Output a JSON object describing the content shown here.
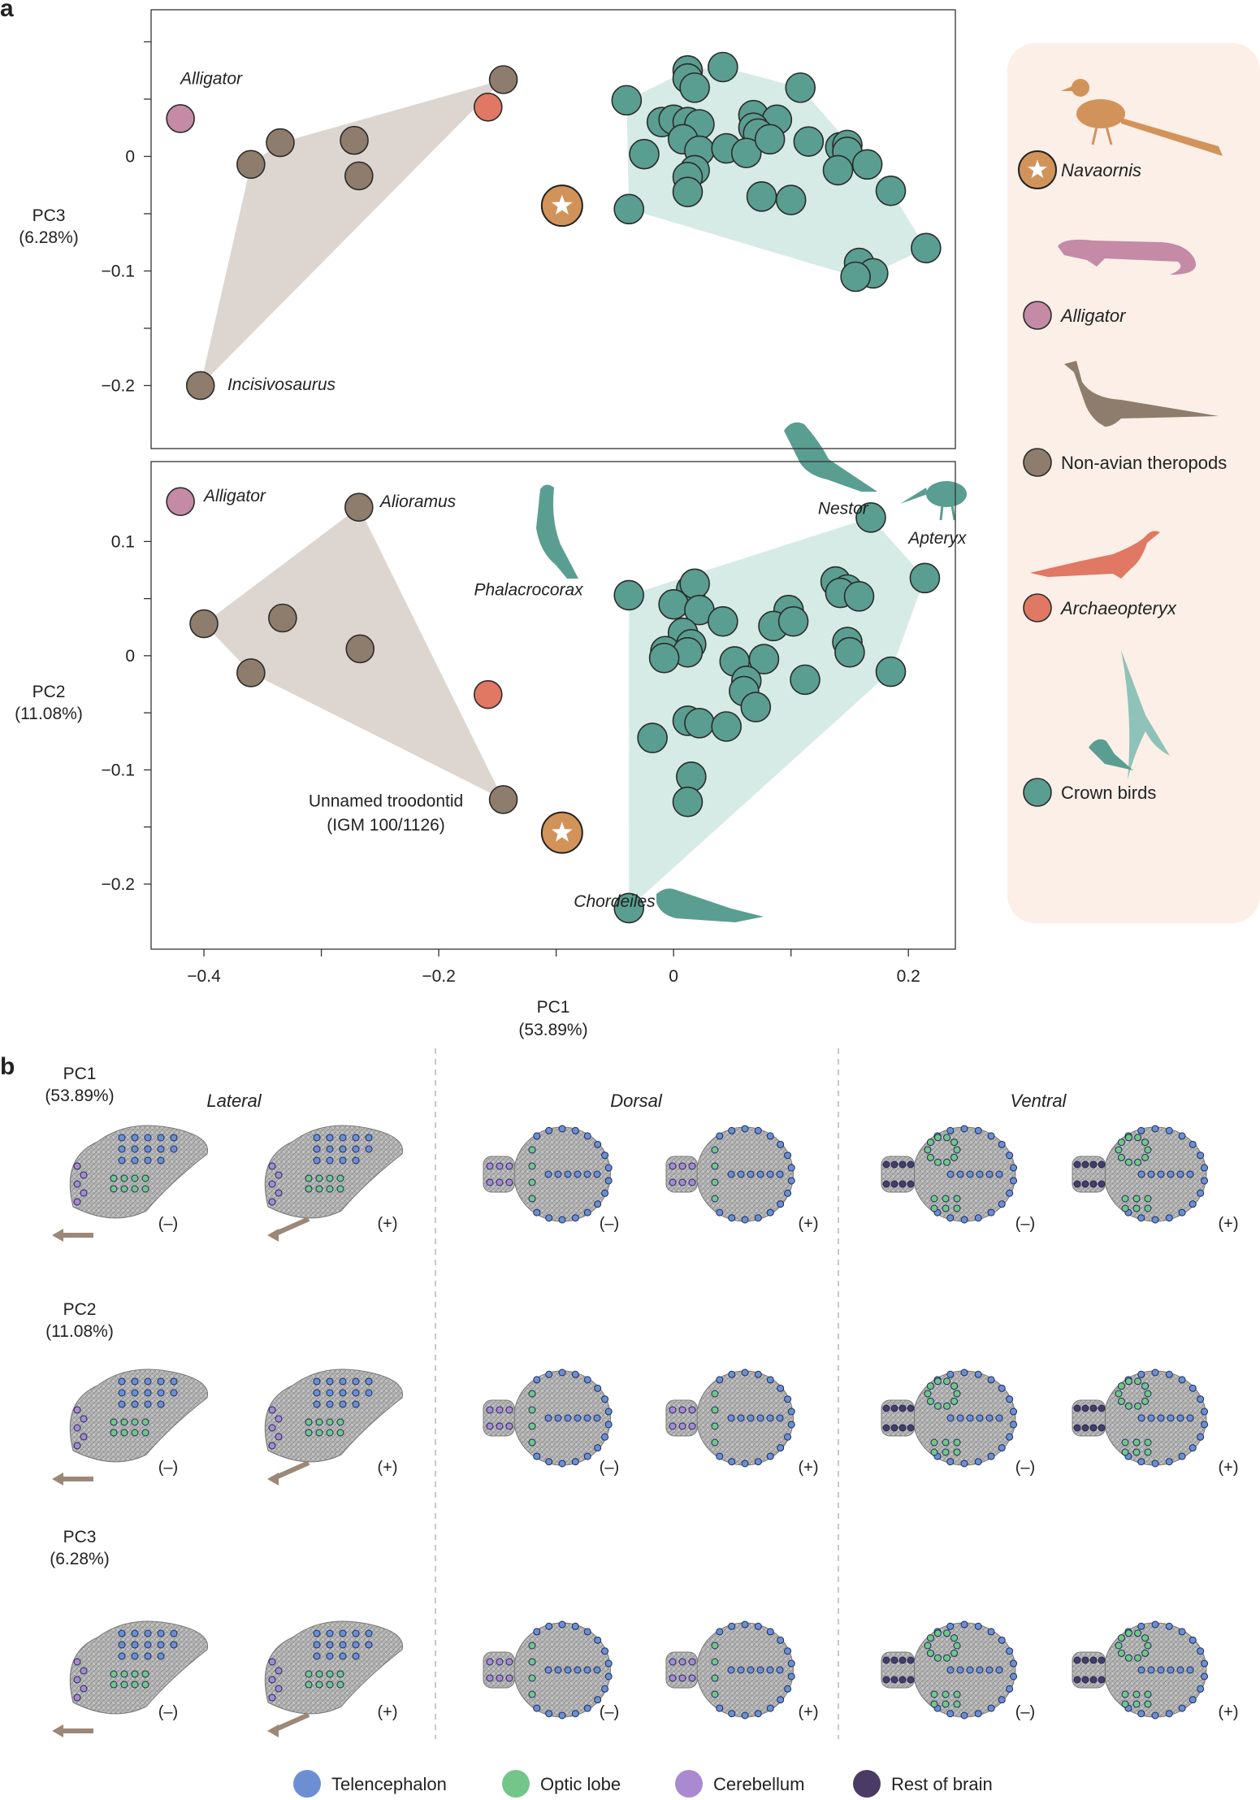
{
  "panel_labels": {
    "a": "a",
    "b": "b"
  },
  "colors": {
    "theropod": "#8e7d6c",
    "bird": "#5a9e91",
    "alligator": "#c48aa6",
    "archaeopteryx": "#e07863",
    "navaornis": "#d2935a",
    "hull_theropod": "#ddd6d0",
    "hull_bird": "#d6ebe6",
    "legend_bg": "#fbefe7",
    "telencephalon": "#6c8fd3",
    "optic_lobe": "#74c589",
    "cerebellum": "#a98ad0",
    "rest_of_brain": "#4a3b66"
  },
  "chart_data": [
    {
      "type": "scatter",
      "panel": "a-top",
      "xlabel": "",
      "ylabel": "PC3\n(6.28%)",
      "xlim": [
        -0.445,
        0.24
      ],
      "ylim": [
        -0.255,
        0.128
      ],
      "yticks": [
        0.1,
        0,
        -0.1,
        -0.2
      ],
      "ytick_labels": [
        "",
        "0",
        "−0.1",
        "−0.2"
      ],
      "series": [
        {
          "name": "Navaornis",
          "group": "navaornis",
          "points": [
            [
              -0.095,
              -0.043
            ]
          ]
        },
        {
          "name": "Alligator",
          "group": "alligator",
          "points": [
            [
              -0.42,
              0.033
            ]
          ]
        },
        {
          "name": "Archaeopteryx",
          "group": "archaeopteryx",
          "points": [
            [
              -0.158,
              0.043
            ]
          ]
        },
        {
          "name": "Non-avian theropods",
          "group": "theropod",
          "points": [
            [
              -0.145,
              0.067
            ],
            [
              -0.36,
              -0.007
            ],
            [
              -0.335,
              0.012
            ],
            [
              -0.272,
              0.014
            ],
            [
              -0.268,
              -0.017
            ],
            [
              -0.403,
              -0.2
            ]
          ]
        },
        {
          "name": "Crown birds",
          "group": "bird",
          "points": [
            [
              -0.04,
              0.049
            ],
            [
              0.012,
              0.075
            ],
            [
              0.042,
              0.078
            ],
            [
              0.012,
              0.068
            ],
            [
              0.018,
              0.06
            ],
            [
              0.108,
              0.06
            ],
            [
              -0.01,
              0.03
            ],
            [
              0.0,
              0.032
            ],
            [
              0.012,
              0.03
            ],
            [
              0.022,
              0.028
            ],
            [
              0.068,
              0.036
            ],
            [
              0.088,
              0.032
            ],
            [
              0.068,
              0.025
            ],
            [
              0.008,
              0.015
            ],
            [
              0.022,
              0.005
            ],
            [
              0.045,
              0.007
            ],
            [
              0.072,
              0.02
            ],
            [
              0.115,
              0.013
            ],
            [
              0.142,
              0.008
            ],
            [
              0.148,
              0.01
            ],
            [
              0.018,
              -0.012
            ],
            [
              0.062,
              0.003
            ],
            [
              0.082,
              0.015
            ],
            [
              0.148,
              0.004
            ],
            [
              0.165,
              -0.007
            ],
            [
              -0.025,
              0.002
            ],
            [
              0.012,
              -0.018
            ],
            [
              0.012,
              -0.031
            ],
            [
              0.075,
              -0.035
            ],
            [
              0.1,
              -0.038
            ],
            [
              0.14,
              -0.012
            ],
            [
              0.185,
              -0.03
            ],
            [
              -0.038,
              -0.046
            ],
            [
              0.158,
              -0.093
            ],
            [
              0.17,
              -0.102
            ],
            [
              0.155,
              -0.105
            ],
            [
              0.215,
              -0.08
            ]
          ]
        }
      ],
      "annotations": [
        {
          "text": "Alligator",
          "x": -0.42,
          "y": 0.063
        },
        {
          "text": "Incisivosaurus",
          "x": -0.38,
          "y": -0.204
        }
      ]
    },
    {
      "type": "scatter",
      "panel": "a-bottom",
      "xlabel": "PC1\n(53.89%)",
      "ylabel": "PC2\n(11.08%)",
      "xlim": [
        -0.445,
        0.24
      ],
      "ylim": [
        -0.257,
        0.17
      ],
      "xticks": [
        -0.4,
        -0.3,
        -0.2,
        -0.1,
        0,
        0.1,
        0.2
      ],
      "xtick_labels": [
        "−0.4",
        "",
        "−0.2",
        "",
        "0",
        "",
        "0.2"
      ],
      "yticks": [
        0.1,
        0,
        -0.1,
        -0.2
      ],
      "ytick_labels": [
        "0.1",
        "0",
        "−0.1",
        "−0.2"
      ],
      "series": [
        {
          "name": "Navaornis",
          "group": "navaornis",
          "points": [
            [
              -0.095,
              -0.155
            ]
          ]
        },
        {
          "name": "Alligator",
          "group": "alligator",
          "points": [
            [
              -0.42,
              0.135
            ]
          ]
        },
        {
          "name": "Archaeopteryx",
          "group": "archaeopteryx",
          "points": [
            [
              -0.158,
              -0.034
            ]
          ]
        },
        {
          "name": "Non-avian theropods",
          "group": "theropod",
          "points": [
            [
              -0.268,
              0.13
            ],
            [
              -0.4,
              0.028
            ],
            [
              -0.333,
              0.033
            ],
            [
              -0.267,
              0.006
            ],
            [
              -0.36,
              -0.015
            ],
            [
              -0.145,
              -0.126
            ]
          ]
        },
        {
          "name": "Crown birds",
          "group": "bird",
          "points": [
            [
              0.168,
              0.121
            ],
            [
              0.214,
              0.068
            ],
            [
              -0.038,
              0.053
            ],
            [
              0.015,
              0.058
            ],
            [
              0.018,
              0.063
            ],
            [
              0.138,
              0.065
            ],
            [
              0.148,
              0.058
            ],
            [
              0.0,
              0.045
            ],
            [
              0.022,
              0.04
            ],
            [
              0.098,
              0.04
            ],
            [
              0.142,
              0.055
            ],
            [
              0.158,
              0.052
            ],
            [
              0.042,
              0.03
            ],
            [
              0.085,
              0.026
            ],
            [
              0.102,
              0.03
            ],
            [
              0.008,
              0.02
            ],
            [
              0.015,
              0.01
            ],
            [
              -0.007,
              0.004
            ],
            [
              0.012,
              0.003
            ],
            [
              0.148,
              0.012
            ],
            [
              -0.008,
              -0.002
            ],
            [
              0.052,
              -0.005
            ],
            [
              0.077,
              -0.003
            ],
            [
              0.15,
              0.003
            ],
            [
              0.062,
              -0.022
            ],
            [
              0.112,
              -0.021
            ],
            [
              0.06,
              -0.031
            ],
            [
              0.185,
              -0.014
            ],
            [
              0.07,
              -0.045
            ],
            [
              -0.018,
              -0.072
            ],
            [
              0.012,
              -0.057
            ],
            [
              0.022,
              -0.059
            ],
            [
              0.045,
              -0.062
            ],
            [
              0.015,
              -0.106
            ],
            [
              0.012,
              -0.128
            ],
            [
              -0.038,
              -0.221
            ]
          ]
        }
      ],
      "annotations": [
        {
          "text": "Alligator",
          "x": -0.4,
          "y": 0.135
        },
        {
          "text": "Alioramus",
          "x": -0.25,
          "y": 0.13
        },
        {
          "text": "Nestor",
          "x": 0.123,
          "y": 0.124
        },
        {
          "text": "Apteryx",
          "x": 0.2,
          "y": 0.098
        },
        {
          "text": "Phalacrocorax",
          "x": -0.17,
          "y": 0.053
        },
        {
          "text": "Unnamed troodontid",
          "x": -0.245,
          "y": -0.132
        },
        {
          "text": "(IGM 100/1126)",
          "x": -0.245,
          "y": -0.153
        },
        {
          "text": "Chordeiles",
          "x": -0.085,
          "y": -0.22
        }
      ]
    }
  ],
  "legend": {
    "items": [
      {
        "label": "Navaornis",
        "group": "navaornis"
      },
      {
        "label": "Alligator",
        "group": "alligator"
      },
      {
        "label": "Non-avian theropods",
        "group": "theropod"
      },
      {
        "label": "Archaeopteryx",
        "group": "archaeopteryx"
      },
      {
        "label": "Crown birds",
        "group": "bird"
      }
    ]
  },
  "panel_b": {
    "views": [
      "Lateral",
      "Dorsal",
      "Ventral"
    ],
    "rows": [
      {
        "pc": "PC1",
        "pct": "(53.89%)"
      },
      {
        "pc": "PC2",
        "pct": "(11.08%)"
      },
      {
        "pc": "PC3",
        "pct": "(6.28%)"
      }
    ],
    "signs": [
      "(–)",
      "(+)"
    ]
  },
  "bottom_legend": [
    {
      "label": "Telencephalon",
      "key": "telencephalon"
    },
    {
      "label": "Optic lobe",
      "key": "optic_lobe"
    },
    {
      "label": "Cerebellum",
      "key": "cerebellum"
    },
    {
      "label": "Rest of brain",
      "key": "rest_of_brain"
    }
  ]
}
